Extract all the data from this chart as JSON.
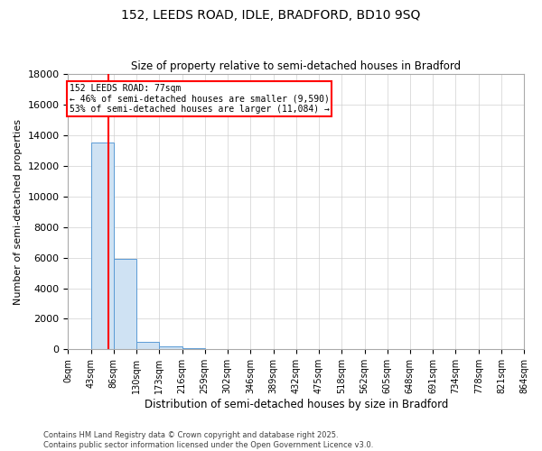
{
  "title1": "152, LEEDS ROAD, IDLE, BRADFORD, BD10 9SQ",
  "title2": "Size of property relative to semi-detached houses in Bradford",
  "xlabel": "Distribution of semi-detached houses by size in Bradford",
  "ylabel": "Number of semi-detached properties",
  "property_size": 77,
  "property_label": "152 LEEDS ROAD: 77sqm",
  "annotation_line1": "← 46% of semi-detached houses are smaller (9,590)",
  "annotation_line2": "53% of semi-detached houses are larger (11,084) →",
  "bin_edges": [
    0,
    43,
    86,
    130,
    173,
    216,
    259,
    302,
    346,
    389,
    432,
    475,
    518,
    562,
    605,
    648,
    691,
    734,
    778,
    821,
    864
  ],
  "bar_heights": [
    40,
    13500,
    5900,
    500,
    200,
    80,
    40,
    15,
    10,
    8,
    5,
    3,
    2,
    2,
    1,
    1,
    1,
    0,
    0,
    0
  ],
  "bar_color": "#cfe2f3",
  "bar_edge_color": "#5b9bd5",
  "property_line_color": "red",
  "ylim": [
    0,
    18000
  ],
  "yticks": [
    0,
    2000,
    4000,
    6000,
    8000,
    10000,
    12000,
    14000,
    16000,
    18000
  ],
  "grid_color": "#d0d0d0",
  "background_color": "white",
  "footnote1": "Contains HM Land Registry data © Crown copyright and database right 2025.",
  "footnote2": "Contains public sector information licensed under the Open Government Licence v3.0."
}
